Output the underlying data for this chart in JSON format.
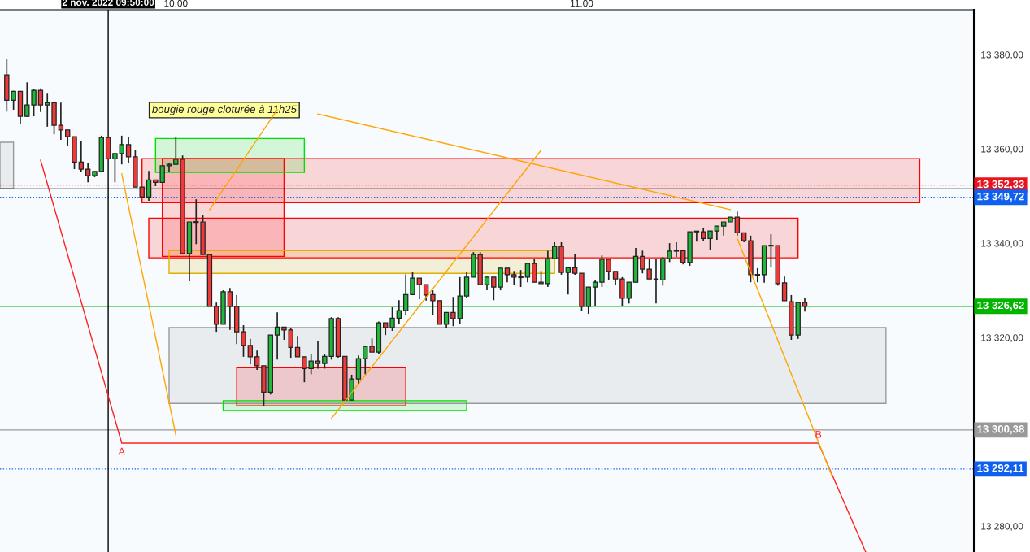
{
  "chart_data": {
    "type": "candlestick",
    "x": [
      "2022-11-02T09:35",
      "2022-11-02T09:36",
      "2022-11-02T09:37",
      "2022-11-02T09:38",
      "2022-11-02T09:39",
      "2022-11-02T09:40",
      "2022-11-02T09:41",
      "2022-11-02T09:42",
      "2022-11-02T09:43",
      "2022-11-02T09:44",
      "2022-11-02T09:45",
      "2022-11-02T09:46",
      "2022-11-02T09:47",
      "2022-11-02T09:48",
      "2022-11-02T09:49",
      "2022-11-02T09:50",
      "2022-11-02T09:51",
      "2022-11-02T09:52",
      "2022-11-02T09:53",
      "2022-11-02T09:54",
      "2022-11-02T09:55",
      "2022-11-02T09:56",
      "2022-11-02T09:57",
      "2022-11-02T09:58",
      "2022-11-02T09:59",
      "2022-11-02T10:00",
      "2022-11-02T10:01",
      "2022-11-02T10:02",
      "2022-11-02T10:03",
      "2022-11-02T10:04",
      "2022-11-02T10:05",
      "2022-11-02T10:06",
      "2022-11-02T10:07",
      "2022-11-02T10:08",
      "2022-11-02T10:09",
      "2022-11-02T10:10",
      "2022-11-02T10:11",
      "2022-11-02T10:12",
      "2022-11-02T10:13",
      "2022-11-02T10:14",
      "2022-11-02T10:15",
      "2022-11-02T10:16",
      "2022-11-02T10:17",
      "2022-11-02T10:18",
      "2022-11-02T10:19",
      "2022-11-02T10:20",
      "2022-11-02T10:21",
      "2022-11-02T10:22",
      "2022-11-02T10:23",
      "2022-11-02T10:24",
      "2022-11-02T10:25",
      "2022-11-02T10:26",
      "2022-11-02T10:27",
      "2022-11-02T10:28",
      "2022-11-02T10:29",
      "2022-11-02T10:30",
      "2022-11-02T10:31",
      "2022-11-02T10:32",
      "2022-11-02T10:33",
      "2022-11-02T10:34",
      "2022-11-02T10:35",
      "2022-11-02T10:36",
      "2022-11-02T10:37",
      "2022-11-02T10:38",
      "2022-11-02T10:39",
      "2022-11-02T10:40",
      "2022-11-02T10:41",
      "2022-11-02T10:42",
      "2022-11-02T10:43",
      "2022-11-02T10:44",
      "2022-11-02T10:45",
      "2022-11-02T10:46",
      "2022-11-02T10:47",
      "2022-11-02T10:48",
      "2022-11-02T10:49",
      "2022-11-02T10:50",
      "2022-11-02T10:51",
      "2022-11-02T10:52",
      "2022-11-02T10:53",
      "2022-11-02T10:54",
      "2022-11-02T10:55",
      "2022-11-02T10:56",
      "2022-11-02T10:57",
      "2022-11-02T10:58",
      "2022-11-02T10:59",
      "2022-11-02T11:00",
      "2022-11-02T11:01",
      "2022-11-02T11:02",
      "2022-11-02T11:03",
      "2022-11-02T11:04",
      "2022-11-02T11:05",
      "2022-11-02T11:06",
      "2022-11-02T11:07",
      "2022-11-02T11:08",
      "2022-11-02T11:09",
      "2022-11-02T11:10",
      "2022-11-02T11:11",
      "2022-11-02T11:12",
      "2022-11-02T11:13",
      "2022-11-02T11:14",
      "2022-11-02T11:15",
      "2022-11-02T11:16",
      "2022-11-02T11:17",
      "2022-11-02T11:18",
      "2022-11-02T11:19",
      "2022-11-02T11:20",
      "2022-11-02T11:21",
      "2022-11-02T11:22",
      "2022-11-02T11:23",
      "2022-11-02T11:24",
      "2022-11-02T11:25",
      "2022-11-02T11:26",
      "2022-11-02T11:27",
      "2022-11-02T11:28",
      "2022-11-02T11:29",
      "2022-11-02T11:30",
      "2022-11-02T11:31",
      "2022-11-02T11:32",
      "2022-11-02T11:33"
    ],
    "ohlc": [
      [
        13375.7,
        13379.0,
        13367.9,
        13370.3
      ],
      [
        13370.3,
        13372.3,
        13368.3,
        13372.2
      ],
      [
        13372.2,
        13372.3,
        13365.3,
        13366.9
      ],
      [
        13366.9,
        13374.1,
        13366.8,
        13369.3
      ],
      [
        13369.3,
        13372.6,
        13366.9,
        13372.4
      ],
      [
        13372.4,
        13372.8,
        13367.8,
        13369.3
      ],
      [
        13369.3,
        13371.7,
        13364.7,
        13369.8
      ],
      [
        13369.8,
        13369.8,
        13363.1,
        13365.0
      ],
      [
        13365.0,
        13369.8,
        13361.9,
        13364.0
      ],
      [
        13364.0,
        13364.0,
        13360.7,
        13362.6
      ],
      [
        13362.6,
        13362.6,
        13355.7,
        13357.2
      ],
      [
        13357.2,
        13361.6,
        13355.2,
        13355.7
      ],
      [
        13355.7,
        13357.1,
        13352.9,
        13354.3
      ],
      [
        13354.3,
        13355.2,
        13354.0,
        13355.2
      ],
      [
        13355.2,
        13362.8,
        13355.2,
        13362.4
      ],
      [
        13362.4,
        13362.6,
        13357.9,
        13357.9
      ],
      [
        13357.9,
        13359.0,
        13352.9,
        13359.0
      ],
      [
        13359.0,
        13362.8,
        13356.7,
        13360.9
      ],
      [
        13360.9,
        13362.6,
        13356.9,
        13358.3
      ],
      [
        13358.3,
        13359.7,
        13351.9,
        13351.9
      ],
      [
        13351.9,
        13351.9,
        13349.8,
        13349.8
      ],
      [
        13349.8,
        13355.3,
        13349.0,
        13353.4
      ],
      [
        13353.4,
        13353.4,
        13352.1,
        13352.9
      ],
      [
        13352.9,
        13356.4,
        13352.9,
        13356.4
      ],
      [
        13356.4,
        13357.0,
        13355.0,
        13356.7
      ],
      [
        13356.7,
        13362.6,
        13356.7,
        13357.8
      ],
      [
        13357.8,
        13358.6,
        13337.8,
        13337.8
      ],
      [
        13337.8,
        13344.5,
        13331.9,
        13344.5
      ],
      [
        13344.5,
        13349.3,
        13339.8,
        13344.4
      ],
      [
        13344.5,
        13345.9,
        13337.6,
        13337.6
      ],
      [
        13337.6,
        13337.6,
        13326.6,
        13326.6
      ],
      [
        13326.6,
        13327.4,
        13321.2,
        13322.8
      ],
      [
        13322.8,
        13330.0,
        13322.8,
        13329.7
      ],
      [
        13329.7,
        13330.5,
        13321.6,
        13326.6
      ],
      [
        13326.6,
        13329.0,
        13318.6,
        13321.2
      ],
      [
        13321.2,
        13322.6,
        13315.9,
        13318.3
      ],
      [
        13318.3,
        13319.7,
        13314.3,
        13315.9
      ],
      [
        13315.9,
        13317.2,
        13313.1,
        13314.0
      ],
      [
        13314.0,
        13314.0,
        13305.5,
        13308.4
      ],
      [
        13308.4,
        13320.5,
        13307.9,
        13320.5
      ],
      [
        13320.5,
        13325.3,
        13315.3,
        13322.2
      ],
      [
        13322.2,
        13322.2,
        13319.5,
        13321.6
      ],
      [
        13321.6,
        13322.0,
        13315.7,
        13317.9
      ],
      [
        13317.9,
        13320.3,
        13315.9,
        13315.9
      ],
      [
        13315.9,
        13315.9,
        13310.5,
        13313.4
      ],
      [
        13313.4,
        13316.4,
        13312.2,
        13315.0
      ],
      [
        13315.0,
        13319.3,
        13313.4,
        13314.5
      ],
      [
        13314.5,
        13316.4,
        13313.4,
        13316.0
      ],
      [
        13316.0,
        13324.3,
        13315.3,
        13324.0
      ],
      [
        13324.0,
        13324.3,
        13315.7,
        13316.0
      ],
      [
        13316.0,
        13316.0,
        13306.7,
        13306.7
      ],
      [
        13306.7,
        13312.1,
        13306.7,
        13311.2
      ],
      [
        13311.2,
        13316.2,
        13310.2,
        13315.5
      ],
      [
        13315.5,
        13318.1,
        13312.2,
        13318.1
      ],
      [
        13318.1,
        13319.8,
        13316.9,
        13316.9
      ],
      [
        13316.9,
        13323.4,
        13316.4,
        13323.1
      ],
      [
        13323.1,
        13323.1,
        13320.5,
        13322.1
      ],
      [
        13322.1,
        13326.4,
        13321.4,
        13324.1
      ],
      [
        13324.1,
        13327.9,
        13322.9,
        13325.7
      ],
      [
        13325.7,
        13333.4,
        13324.7,
        13329.1
      ],
      [
        13329.1,
        13333.8,
        13329.1,
        13332.6
      ],
      [
        13332.6,
        13332.6,
        13328.1,
        13331.2
      ],
      [
        13331.2,
        13331.2,
        13327.8,
        13329.0
      ],
      [
        13329.1,
        13330.0,
        13324.7,
        13327.8
      ],
      [
        13327.8,
        13327.8,
        13322.8,
        13322.8
      ],
      [
        13322.8,
        13325.3,
        13321.9,
        13325.3
      ],
      [
        13325.3,
        13328.6,
        13322.4,
        13324.0
      ],
      [
        13324.0,
        13332.8,
        13322.9,
        13328.8
      ],
      [
        13328.8,
        13333.8,
        13328.3,
        13332.8
      ],
      [
        13332.8,
        13338.1,
        13332.8,
        13337.6
      ],
      [
        13337.6,
        13338.1,
        13331.2,
        13331.2
      ],
      [
        13331.2,
        13332.8,
        13330.0,
        13332.8
      ],
      [
        13332.8,
        13332.8,
        13327.9,
        13330.7
      ],
      [
        13330.7,
        13334.7,
        13330.0,
        13334.7
      ],
      [
        13334.7,
        13334.7,
        13331.7,
        13333.3
      ],
      [
        13333.3,
        13334.1,
        13331.2,
        13332.8
      ],
      [
        13332.8,
        13334.3,
        13330.7,
        13332.7
      ],
      [
        13332.8,
        13335.7,
        13331.7,
        13335.7
      ],
      [
        13335.7,
        13336.6,
        13331.7,
        13331.7
      ],
      [
        13331.7,
        13334.1,
        13331.4,
        13331.4
      ],
      [
        13331.4,
        13338.4,
        13330.7,
        13336.7
      ],
      [
        13336.7,
        13340.2,
        13336.7,
        13339.3
      ],
      [
        13339.3,
        13340.2,
        13333.3,
        13333.8
      ],
      [
        13333.8,
        13334.8,
        13329.1,
        13334.8
      ],
      [
        13334.8,
        13337.6,
        13333.3,
        13333.6
      ],
      [
        13333.6,
        13333.6,
        13325.7,
        13326.6
      ],
      [
        13326.6,
        13330.7,
        13325.0,
        13330.7
      ],
      [
        13330.7,
        13332.1,
        13326.6,
        13331.7
      ],
      [
        13331.7,
        13337.4,
        13330.7,
        13336.6
      ],
      [
        13336.6,
        13336.6,
        13332.2,
        13334.0
      ],
      [
        13334.0,
        13334.0,
        13331.2,
        13332.4
      ],
      [
        13332.4,
        13332.8,
        13326.6,
        13328.3
      ],
      [
        13328.3,
        13331.7,
        13327.2,
        13331.7
      ],
      [
        13331.7,
        13339.0,
        13331.7,
        13337.2
      ],
      [
        13337.2,
        13338.4,
        13333.6,
        13334.5
      ],
      [
        13334.5,
        13336.7,
        13332.4,
        13332.4
      ],
      [
        13332.4,
        13336.7,
        13327.2,
        13332.2
      ],
      [
        13332.2,
        13337.1,
        13331.0,
        13336.7
      ],
      [
        13336.7,
        13340.0,
        13336.0,
        13338.3
      ],
      [
        13338.3,
        13340.2,
        13337.1,
        13338.4
      ],
      [
        13338.4,
        13338.4,
        13335.5,
        13335.9
      ],
      [
        13335.9,
        13342.4,
        13335.2,
        13342.4
      ],
      [
        13342.4,
        13342.6,
        13340.3,
        13342.5
      ],
      [
        13342.4,
        13343.3,
        13340.5,
        13341.0
      ],
      [
        13341.0,
        13342.6,
        13338.6,
        13342.6
      ],
      [
        13342.6,
        13343.6,
        13340.7,
        13343.6
      ],
      [
        13343.6,
        13344.5,
        13341.6,
        13344.5
      ],
      [
        13344.5,
        13345.5,
        13344.5,
        13345.5
      ],
      [
        13345.5,
        13346.7,
        13341.6,
        13342.2
      ],
      [
        13342.2,
        13342.2,
        13340.2,
        13340.5
      ],
      [
        13340.5,
        13341.6,
        13331.7,
        13333.3
      ],
      [
        13333.3,
        13334.7,
        13331.7,
        13333.2
      ],
      [
        13333.3,
        13339.5,
        13331.6,
        13339.5
      ],
      [
        13339.5,
        13341.9,
        13335.0,
        13339.4
      ],
      [
        13339.5,
        13339.5,
        13331.0,
        13331.4
      ],
      [
        13331.6,
        13332.9,
        13327.8,
        13327.8
      ],
      [
        13327.6,
        13329.0,
        13319.5,
        13320.5
      ],
      [
        13320.5,
        13327.4,
        13319.7,
        13327.4
      ],
      [
        13327.4,
        13328.4,
        13325.5,
        13326.62
      ]
    ],
    "series": [
      {
        "type": "area",
        "color": "#ff0000",
        "x": [
          "2022-11-02T09:55",
          "2022-11-02T11:50",
          "2022-11-02T11:50",
          "2022-11-02T09:55"
        ],
        "values": [
          13357.9,
          13357.9,
          13348.6,
          13348.6
        ]
      },
      {
        "type": "area",
        "color": "#ff0000",
        "x": [
          "2022-11-02T09:58",
          "2022-11-02T10:16",
          "2022-11-02T10:16",
          "2022-11-02T09:58"
        ],
        "values": [
          13357.9,
          13357.9,
          13337.2,
          13337.2
        ]
      },
      {
        "type": "area",
        "color": "#ff0000",
        "x": [
          "2022-11-02T09:56",
          "2022-11-02T11:32",
          "2022-11-02T11:32",
          "2022-11-02T09:56"
        ],
        "values": [
          13345.3,
          13345.3,
          13336.9,
          13336.9
        ]
      },
      {
        "type": "area",
        "color": "#e0b000",
        "x": [
          "2022-11-02T09:59",
          "2022-11-02T10:56",
          "2022-11-02T10:56",
          "2022-11-02T09:59"
        ],
        "values": [
          13338.4,
          13338.4,
          13333.6,
          13333.6
        ]
      },
      {
        "type": "area",
        "color": "#00e000",
        "x": [
          "2022-11-02T09:57",
          "2022-11-02T10:19",
          "2022-11-02T10:19",
          "2022-11-02T09:57"
        ],
        "values": [
          13362.2,
          13362.2,
          13355.0,
          13355.0
        ]
      },
      {
        "type": "area",
        "color": "#999999",
        "x": [
          "2022-11-02T09:59",
          "2022-11-02T11:45",
          "2022-11-02T11:45",
          "2022-11-02T09:59"
        ],
        "values": [
          13322.1,
          13322.1,
          13306.0,
          13306.0
        ]
      },
      {
        "type": "area",
        "color": "#ff0000",
        "x": [
          "2022-11-02T10:09",
          "2022-11-02T10:34",
          "2022-11-02T10:34",
          "2022-11-02T10:09"
        ],
        "values": [
          13313.6,
          13313.6,
          13305.5,
          13305.5
        ]
      },
      {
        "type": "area",
        "color": "#00e000",
        "x": [
          "2022-11-02T10:07",
          "2022-11-02T10:43",
          "2022-11-02T10:43",
          "2022-11-02T10:07"
        ],
        "values": [
          13306.6,
          13306.6,
          13304.5,
          13304.5
        ]
      },
      {
        "type": "area",
        "color": "#999999",
        "x": [
          "2022-11-02T09:34",
          "2022-11-02T09:36",
          "2022-11-02T09:36",
          "2022-11-02T09:34"
        ],
        "values": [
          13361.4,
          13361.4,
          13351.6,
          13351.6
        ]
      },
      {
        "type": "line",
        "color": "#ff2020",
        "x": [
          "2022-11-02T09:40",
          "2022-11-02T09:52",
          "2022-11-02T11:35",
          "2022-11-02T11:42"
        ],
        "values": [
          13357.6,
          13297.6,
          13297.6,
          13274.5
        ]
      },
      {
        "type": "line",
        "color": "#ffa500",
        "x": [
          "2022-11-02T09:52",
          "2022-11-02T10:00"
        ],
        "values": [
          13354.7,
          13299.3
        ]
      },
      {
        "type": "line",
        "color": "#ffa500",
        "x": [
          "2022-11-02T10:23",
          "2022-11-02T10:54"
        ],
        "values": [
          13302.8,
          13359.7
        ]
      },
      {
        "type": "line",
        "color": "#ffa500",
        "x": [
          "2022-11-02T10:21",
          "2022-11-02T11:22"
        ],
        "values": [
          13367.4,
          13347.1
        ]
      },
      {
        "type": "line",
        "color": "#ffa500",
        "x": [
          "2022-11-02T10:15",
          "2022-11-02T10:05"
        ],
        "values": [
          13368.3,
          13347.1
        ]
      },
      {
        "type": "line",
        "color": "#ffa500",
        "x": [
          "2022-11-02T11:23",
          "2022-11-02T11:37"
        ],
        "values": [
          13341.0,
          13290.7
        ]
      }
    ],
    "ref_lines": [
      {
        "axis": "y",
        "value": 13352.33,
        "label": "13 352,33",
        "color": "#e8141b",
        "line_style": "dotted"
      },
      {
        "axis": "y",
        "value": 13351.5,
        "color": "#000000",
        "line_style": "solid"
      },
      {
        "axis": "y",
        "value": 13349.72,
        "label": "13 349,72",
        "color": "#1060f0",
        "line_style": "dotted"
      },
      {
        "axis": "y",
        "value": 13326.62,
        "label": "13 326,62",
        "color": "#00b400",
        "line_style": "solid"
      },
      {
        "axis": "y",
        "value": 13300.38,
        "label": "13 300,38",
        "color": "#999999",
        "line_style": "solid"
      },
      {
        "axis": "y",
        "value": 13292.11,
        "label": "13 292,11",
        "color": "#1060f0",
        "line_style": "dotted"
      },
      {
        "axis": "x",
        "value": "2022-11-02T09:50",
        "label": "2 nov. 2022 09:50:00",
        "color": "#000000",
        "line_style": "solid"
      }
    ],
    "annotations": [
      "bougie rouge cloturée à 11h25",
      {
        "text": "A",
        "x": "2022-11-02T09:52",
        "y": 13297.6
      },
      {
        "text": "B",
        "x": "2022-11-02T11:35",
        "y": 13297.6
      }
    ],
    "xlim": [
      "2022-11-02T09:34",
      "2022-11-02T11:58"
    ],
    "xticks": [
      {
        "value": "2022-11-02T10:00",
        "label": "10:00"
      },
      {
        "value": "2022-11-02T11:00",
        "label": "11:00"
      }
    ],
    "ylim": [
      13274.5,
      13389.5
    ],
    "yticks": [
      {
        "value": 13280,
        "label": "13 280,00"
      },
      {
        "value": 13320,
        "label": "13 320,00"
      },
      {
        "value": 13340,
        "label": "13 340,00"
      },
      {
        "value": 13360,
        "label": "13 360,00"
      },
      {
        "value": 13380,
        "label": "13 380,00"
      }
    ],
    "grid": false
  }
}
